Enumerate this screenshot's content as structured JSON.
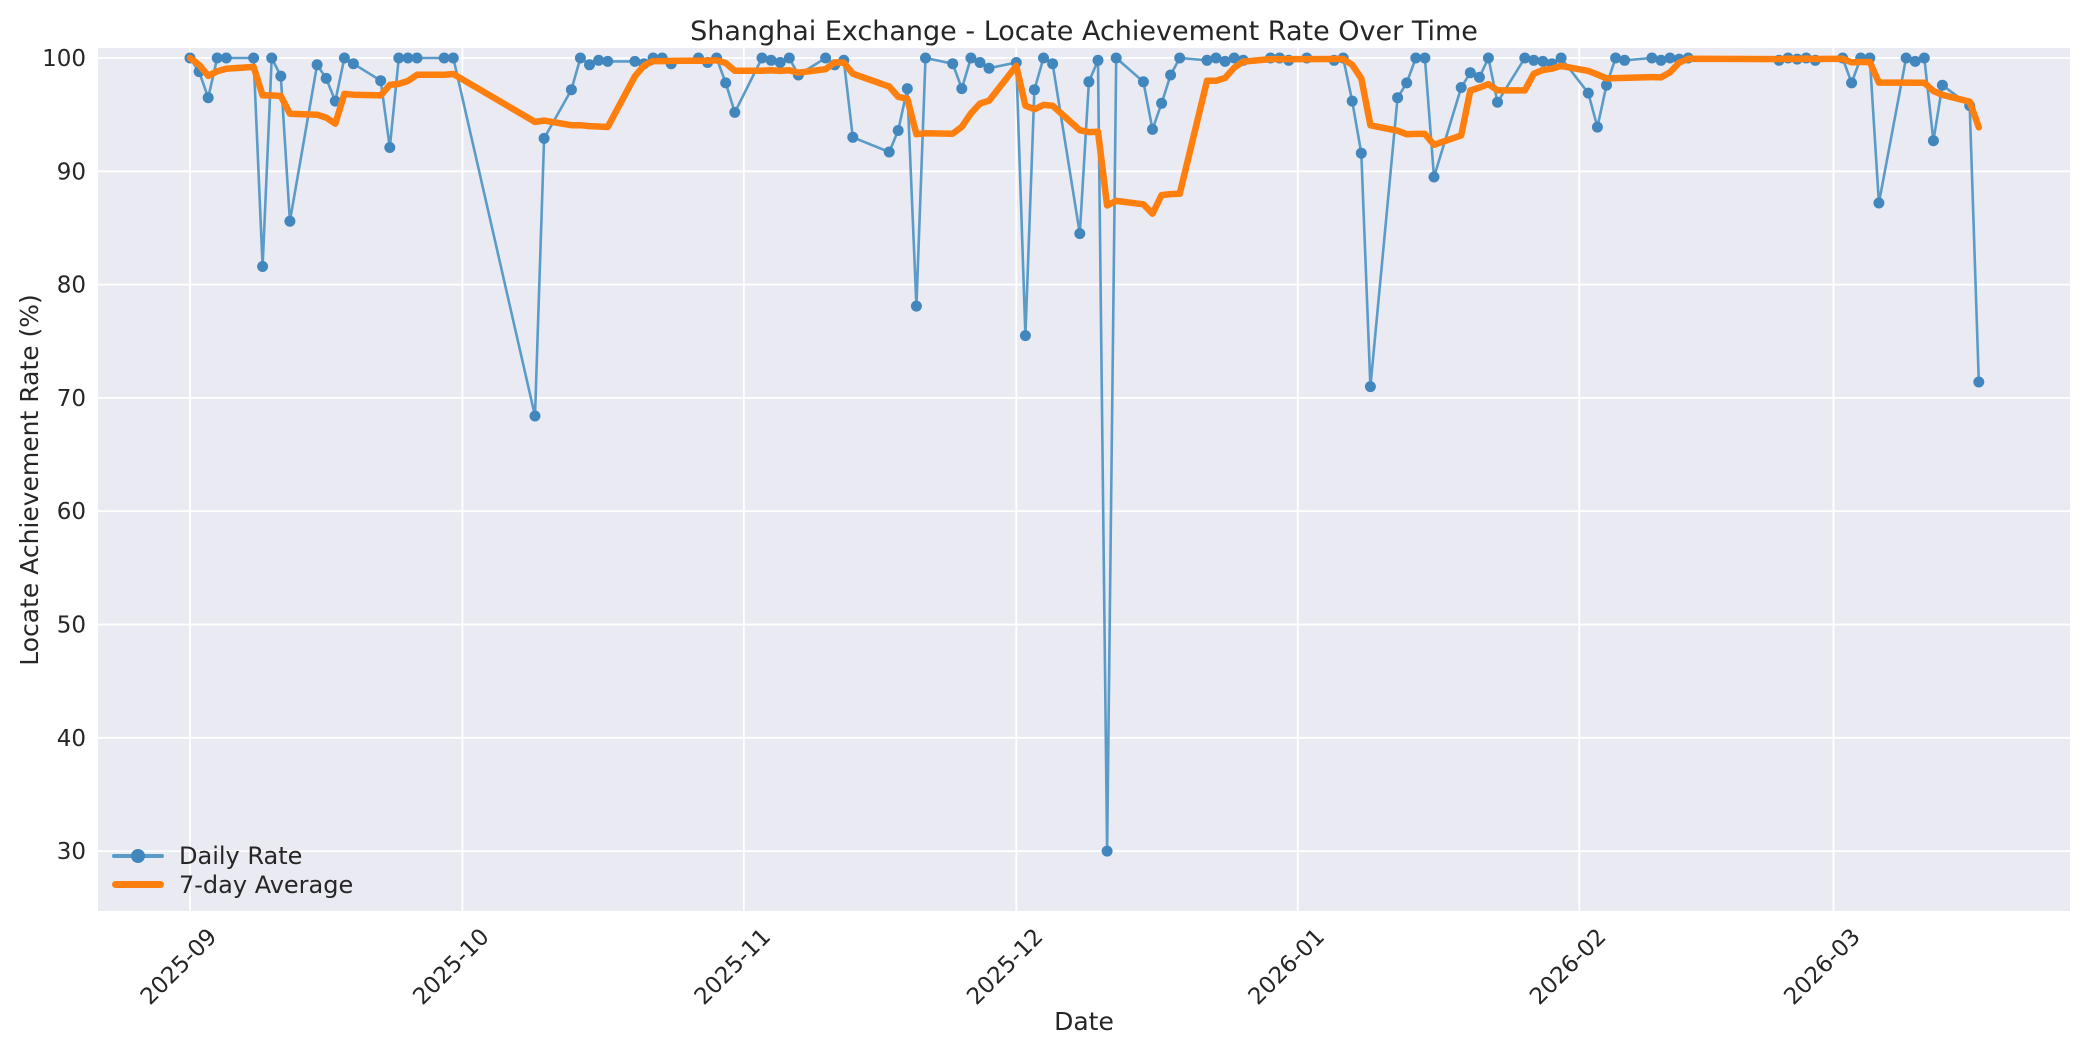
{
  "title": "Shanghai Exchange - Locate Achievement Rate Over Time",
  "axes": {
    "xlabel": "Date",
    "ylabel": "Locate Achievement Rate (%)"
  },
  "legend": {
    "items": [
      {
        "label": "Daily Rate",
        "marker": "line-with-dot"
      },
      {
        "label": "7-day Average",
        "marker": "thick-line"
      }
    ]
  },
  "colors": {
    "figure_background": "#ffffff",
    "axes_background": "#eaeaf2",
    "gridline": "#ffffff",
    "daily_line": "#5b9bc8",
    "daily_marker": "#4187bd",
    "average_line": "#ff7f0e",
    "text": "#262626"
  },
  "chart_data": {
    "type": "line",
    "title": "Shanghai Exchange - Locate Achievement Rate Over Time",
    "xlabel": "Date",
    "ylabel": "Locate Achievement Rate (%)",
    "grid": true,
    "legend_position": "lower-left",
    "ylim": [
      24.7,
      100.9
    ],
    "y_ticks": [
      30,
      40,
      50,
      60,
      70,
      80,
      90,
      100
    ],
    "x_ticks": [
      {
        "label": "2025-09",
        "date": "2025-09-01"
      },
      {
        "label": "2025-10",
        "date": "2025-10-01"
      },
      {
        "label": "2025-11",
        "date": "2025-11-01"
      },
      {
        "label": "2025-12",
        "date": "2025-12-01"
      },
      {
        "label": "2026-01",
        "date": "2026-01-01"
      },
      {
        "label": "2026-02",
        "date": "2026-02-01"
      },
      {
        "label": "2026-03",
        "date": "2026-03-01"
      }
    ],
    "series": [
      {
        "name": "Daily Rate",
        "color": "#5b9bc8",
        "marker_color": "#4187bd",
        "style": "line+markers",
        "points": [
          [
            "2025-09-01",
            100
          ],
          [
            "2025-09-02",
            98.8
          ],
          [
            "2025-09-03",
            96.5
          ],
          [
            "2025-09-04",
            100
          ],
          [
            "2025-09-05",
            100
          ],
          [
            "2025-09-08",
            100
          ],
          [
            "2025-09-09",
            81.6
          ],
          [
            "2025-09-10",
            100
          ],
          [
            "2025-09-11",
            98.4
          ],
          [
            "2025-09-12",
            85.6
          ],
          [
            "2025-09-15",
            99.4
          ],
          [
            "2025-09-16",
            98.2
          ],
          [
            "2025-09-17",
            96.2
          ],
          [
            "2025-09-18",
            100
          ],
          [
            "2025-09-19",
            99.5
          ],
          [
            "2025-09-22",
            98.0
          ],
          [
            "2025-09-23",
            92.1
          ],
          [
            "2025-09-24",
            100
          ],
          [
            "2025-09-25",
            100
          ],
          [
            "2025-09-26",
            100
          ],
          [
            "2025-09-29",
            100
          ],
          [
            "2025-09-30",
            100
          ],
          [
            "2025-10-09",
            68.4
          ],
          [
            "2025-10-10",
            92.9
          ],
          [
            "2025-10-13",
            97.2
          ],
          [
            "2025-10-14",
            100
          ],
          [
            "2025-10-15",
            99.4
          ],
          [
            "2025-10-16",
            99.8
          ],
          [
            "2025-10-17",
            99.7
          ],
          [
            "2025-10-20",
            99.7
          ],
          [
            "2025-10-21",
            99.5
          ],
          [
            "2025-10-22",
            100
          ],
          [
            "2025-10-23",
            100
          ],
          [
            "2025-10-24",
            99.5
          ],
          [
            "2025-10-27",
            100
          ],
          [
            "2025-10-28",
            99.6
          ],
          [
            "2025-10-29",
            100
          ],
          [
            "2025-10-30",
            97.8
          ],
          [
            "2025-10-31",
            95.2
          ],
          [
            "2025-11-03",
            100
          ],
          [
            "2025-11-04",
            99.8
          ],
          [
            "2025-11-05",
            99.6
          ],
          [
            "2025-11-06",
            100
          ],
          [
            "2025-11-07",
            98.5
          ],
          [
            "2025-11-10",
            100
          ],
          [
            "2025-11-11",
            99.4
          ],
          [
            "2025-11-12",
            99.8
          ],
          [
            "2025-11-13",
            93.0
          ],
          [
            "2025-11-17",
            91.7
          ],
          [
            "2025-11-18",
            93.6
          ],
          [
            "2025-11-19",
            97.3
          ],
          [
            "2025-11-20",
            78.1
          ],
          [
            "2025-11-21",
            100
          ],
          [
            "2025-11-24",
            99.5
          ],
          [
            "2025-11-25",
            97.3
          ],
          [
            "2025-11-26",
            100
          ],
          [
            "2025-11-27",
            99.6
          ],
          [
            "2025-11-28",
            99.1
          ],
          [
            "2025-12-01",
            99.6
          ],
          [
            "2025-12-02",
            75.5
          ],
          [
            "2025-12-03",
            97.2
          ],
          [
            "2025-12-04",
            100
          ],
          [
            "2025-12-05",
            99.5
          ],
          [
            "2025-12-08",
            84.5
          ],
          [
            "2025-12-09",
            97.9
          ],
          [
            "2025-12-10",
            99.8
          ],
          [
            "2025-12-11",
            30.0
          ],
          [
            "2025-12-12",
            100
          ],
          [
            "2025-12-15",
            97.9
          ],
          [
            "2025-12-16",
            93.7
          ],
          [
            "2025-12-17",
            96.0
          ],
          [
            "2025-12-18",
            98.5
          ],
          [
            "2025-12-19",
            100
          ],
          [
            "2025-12-22",
            99.8
          ],
          [
            "2025-12-23",
            100
          ],
          [
            "2025-12-24",
            99.7
          ],
          [
            "2025-12-25",
            100
          ],
          [
            "2025-12-26",
            99.8
          ],
          [
            "2025-12-29",
            100
          ],
          [
            "2025-12-30",
            100
          ],
          [
            "2025-12-31",
            99.8
          ],
          [
            "2026-01-02",
            100
          ],
          [
            "2026-01-05",
            99.8
          ],
          [
            "2026-01-06",
            100
          ],
          [
            "2026-01-07",
            96.2
          ],
          [
            "2026-01-08",
            91.6
          ],
          [
            "2026-01-09",
            71.0
          ],
          [
            "2026-01-12",
            96.5
          ],
          [
            "2026-01-13",
            97.8
          ],
          [
            "2026-01-14",
            100
          ],
          [
            "2026-01-15",
            100
          ],
          [
            "2026-01-16",
            89.5
          ],
          [
            "2026-01-19",
            97.4
          ],
          [
            "2026-01-20",
            98.7
          ],
          [
            "2026-01-21",
            98.3
          ],
          [
            "2026-01-22",
            100
          ],
          [
            "2026-01-23",
            96.1
          ],
          [
            "2026-01-26",
            100
          ],
          [
            "2026-01-27",
            99.8
          ],
          [
            "2026-01-28",
            99.7
          ],
          [
            "2026-01-29",
            99.5
          ],
          [
            "2026-01-30",
            100
          ],
          [
            "2026-02-02",
            96.9
          ],
          [
            "2026-02-03",
            93.9
          ],
          [
            "2026-02-04",
            97.6
          ],
          [
            "2026-02-05",
            100
          ],
          [
            "2026-02-06",
            99.8
          ],
          [
            "2026-02-09",
            100
          ],
          [
            "2026-02-10",
            99.8
          ],
          [
            "2026-02-11",
            100
          ],
          [
            "2026-02-12",
            99.9
          ],
          [
            "2026-02-13",
            100
          ],
          [
            "2026-02-23",
            99.8
          ],
          [
            "2026-02-24",
            100
          ],
          [
            "2026-02-25",
            99.9
          ],
          [
            "2026-02-26",
            100
          ],
          [
            "2026-02-27",
            99.8
          ],
          [
            "2026-03-02",
            100
          ],
          [
            "2026-03-03",
            97.8
          ],
          [
            "2026-03-04",
            100
          ],
          [
            "2026-03-05",
            100
          ],
          [
            "2026-03-06",
            87.2
          ],
          [
            "2026-03-09",
            100
          ],
          [
            "2026-03-10",
            99.7
          ],
          [
            "2026-03-11",
            100
          ],
          [
            "2026-03-12",
            92.7
          ],
          [
            "2026-03-13",
            97.6
          ],
          [
            "2026-03-16",
            95.8
          ],
          [
            "2026-03-17",
            71.4
          ]
        ]
      },
      {
        "name": "7-day Average",
        "color": "#ff7f0e",
        "style": "thick-line",
        "derived": "rolling mean of Daily Rate, window 7 points, min_periods 1"
      }
    ]
  }
}
